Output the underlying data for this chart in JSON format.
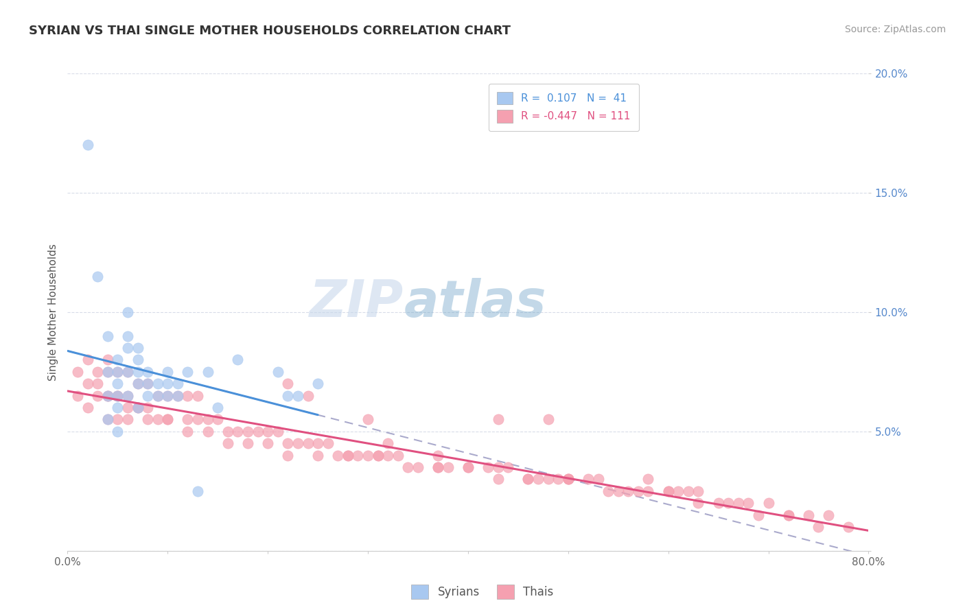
{
  "title": "SYRIAN VS THAI SINGLE MOTHER HOUSEHOLDS CORRELATION CHART",
  "source": "Source: ZipAtlas.com",
  "ylabel": "Single Mother Households",
  "watermark": "ZIPatlas",
  "xlim": [
    0.0,
    0.8
  ],
  "ylim": [
    0.0,
    0.2
  ],
  "xticks": [
    0.0,
    0.1,
    0.2,
    0.3,
    0.4,
    0.5,
    0.6,
    0.7,
    0.8
  ],
  "xticklabels": [
    "0.0%",
    "",
    "",
    "",
    "",
    "",
    "",
    "",
    "80.0%"
  ],
  "yticks": [
    0.0,
    0.05,
    0.1,
    0.15,
    0.2
  ],
  "yticklabels": [
    "",
    "5.0%",
    "10.0%",
    "15.0%",
    "20.0%"
  ],
  "syrian_color": "#a8c8f0",
  "thai_color": "#f5a0b0",
  "trend_syrian_color": "#4a90d9",
  "trend_thai_color": "#e05080",
  "dash_color": "#aaaacc",
  "grid_color": "#d8dce8",
  "bg_color": "#ffffff",
  "syrians_x": [
    0.02,
    0.03,
    0.04,
    0.04,
    0.04,
    0.04,
    0.05,
    0.05,
    0.05,
    0.05,
    0.05,
    0.05,
    0.06,
    0.06,
    0.06,
    0.06,
    0.06,
    0.07,
    0.07,
    0.07,
    0.07,
    0.07,
    0.08,
    0.08,
    0.08,
    0.09,
    0.09,
    0.1,
    0.1,
    0.1,
    0.11,
    0.11,
    0.12,
    0.13,
    0.14,
    0.15,
    0.17,
    0.21,
    0.22,
    0.23,
    0.25
  ],
  "syrians_y": [
    0.17,
    0.115,
    0.09,
    0.075,
    0.065,
    0.055,
    0.08,
    0.075,
    0.07,
    0.065,
    0.06,
    0.05,
    0.1,
    0.09,
    0.085,
    0.075,
    0.065,
    0.085,
    0.08,
    0.075,
    0.07,
    0.06,
    0.075,
    0.07,
    0.065,
    0.07,
    0.065,
    0.075,
    0.07,
    0.065,
    0.07,
    0.065,
    0.075,
    0.025,
    0.075,
    0.06,
    0.08,
    0.075,
    0.065,
    0.065,
    0.07
  ],
  "thais_x": [
    0.01,
    0.01,
    0.02,
    0.02,
    0.02,
    0.03,
    0.03,
    0.04,
    0.04,
    0.04,
    0.04,
    0.05,
    0.05,
    0.05,
    0.06,
    0.06,
    0.06,
    0.07,
    0.07,
    0.08,
    0.08,
    0.09,
    0.09,
    0.1,
    0.1,
    0.11,
    0.12,
    0.12,
    0.13,
    0.13,
    0.14,
    0.15,
    0.16,
    0.17,
    0.18,
    0.19,
    0.2,
    0.21,
    0.22,
    0.23,
    0.24,
    0.25,
    0.26,
    0.27,
    0.28,
    0.29,
    0.3,
    0.31,
    0.32,
    0.33,
    0.35,
    0.37,
    0.38,
    0.4,
    0.42,
    0.43,
    0.44,
    0.46,
    0.47,
    0.48,
    0.49,
    0.5,
    0.52,
    0.53,
    0.55,
    0.56,
    0.58,
    0.6,
    0.61,
    0.62,
    0.63,
    0.65,
    0.67,
    0.68,
    0.7,
    0.72,
    0.74,
    0.76,
    0.03,
    0.04,
    0.05,
    0.06,
    0.07,
    0.08,
    0.1,
    0.12,
    0.14,
    0.16,
    0.18,
    0.2,
    0.22,
    0.25,
    0.28,
    0.31,
    0.34,
    0.37,
    0.4,
    0.43,
    0.46,
    0.5,
    0.54,
    0.57,
    0.6,
    0.63,
    0.66,
    0.69,
    0.72,
    0.75,
    0.43,
    0.5,
    0.37,
    0.48,
    0.3,
    0.24,
    0.78,
    0.32,
    0.58,
    0.22
  ],
  "thais_y": [
    0.075,
    0.065,
    0.08,
    0.07,
    0.06,
    0.075,
    0.065,
    0.08,
    0.075,
    0.065,
    0.055,
    0.075,
    0.065,
    0.055,
    0.075,
    0.065,
    0.055,
    0.07,
    0.06,
    0.07,
    0.06,
    0.065,
    0.055,
    0.065,
    0.055,
    0.065,
    0.065,
    0.055,
    0.065,
    0.055,
    0.055,
    0.055,
    0.05,
    0.05,
    0.05,
    0.05,
    0.05,
    0.05,
    0.045,
    0.045,
    0.045,
    0.045,
    0.045,
    0.04,
    0.04,
    0.04,
    0.04,
    0.04,
    0.04,
    0.04,
    0.035,
    0.035,
    0.035,
    0.035,
    0.035,
    0.035,
    0.035,
    0.03,
    0.03,
    0.03,
    0.03,
    0.03,
    0.03,
    0.03,
    0.025,
    0.025,
    0.025,
    0.025,
    0.025,
    0.025,
    0.025,
    0.02,
    0.02,
    0.02,
    0.02,
    0.015,
    0.015,
    0.015,
    0.07,
    0.065,
    0.065,
    0.06,
    0.06,
    0.055,
    0.055,
    0.05,
    0.05,
    0.045,
    0.045,
    0.045,
    0.04,
    0.04,
    0.04,
    0.04,
    0.035,
    0.035,
    0.035,
    0.03,
    0.03,
    0.03,
    0.025,
    0.025,
    0.025,
    0.02,
    0.02,
    0.015,
    0.015,
    0.01,
    0.055,
    0.03,
    0.04,
    0.055,
    0.055,
    0.065,
    0.01,
    0.045,
    0.03,
    0.07
  ]
}
